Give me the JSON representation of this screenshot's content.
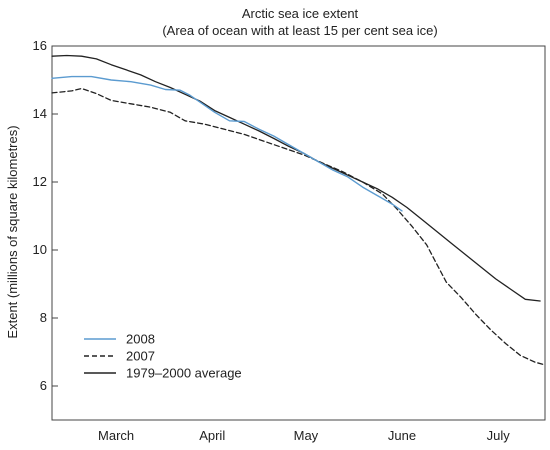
{
  "chart_data": {
    "type": "line",
    "title": "Arctic sea ice extent",
    "subtitle": "(Area of ocean with at least 15 per cent sea ice)",
    "ylabel": "Extent (millions of square kilometres)",
    "xlabel": "",
    "ylim": [
      5,
      16
    ],
    "xlim": [
      0,
      1
    ],
    "yticks": [
      6,
      8,
      10,
      12,
      14,
      16
    ],
    "month_labels": [
      {
        "label": "March",
        "x": 0.13
      },
      {
        "label": "April",
        "x": 0.325
      },
      {
        "label": "May",
        "x": 0.515
      },
      {
        "label": "June",
        "x": 0.71
      },
      {
        "label": "July",
        "x": 0.905
      }
    ],
    "legend_placement": "bottom-left",
    "grid": false,
    "series": [
      {
        "name": "2008",
        "color": "#5b9bd0",
        "dash": "solid",
        "points": [
          [
            0.0,
            15.05
          ],
          [
            0.04,
            15.1
          ],
          [
            0.08,
            15.1
          ],
          [
            0.12,
            15.0
          ],
          [
            0.16,
            14.95
          ],
          [
            0.2,
            14.85
          ],
          [
            0.23,
            14.72
          ],
          [
            0.26,
            14.7
          ],
          [
            0.28,
            14.55
          ],
          [
            0.3,
            14.35
          ],
          [
            0.33,
            14.05
          ],
          [
            0.36,
            13.8
          ],
          [
            0.39,
            13.78
          ],
          [
            0.42,
            13.55
          ],
          [
            0.45,
            13.35
          ],
          [
            0.48,
            13.1
          ],
          [
            0.51,
            12.85
          ],
          [
            0.54,
            12.6
          ],
          [
            0.57,
            12.35
          ],
          [
            0.6,
            12.15
          ],
          [
            0.63,
            11.85
          ],
          [
            0.66,
            11.6
          ],
          [
            0.69,
            11.35
          ],
          [
            0.71,
            11.15
          ]
        ]
      },
      {
        "name": "2007",
        "color": "#222222",
        "dash": "dashed",
        "points": [
          [
            0.0,
            14.62
          ],
          [
            0.04,
            14.68
          ],
          [
            0.06,
            14.75
          ],
          [
            0.09,
            14.6
          ],
          [
            0.12,
            14.4
          ],
          [
            0.16,
            14.3
          ],
          [
            0.2,
            14.2
          ],
          [
            0.24,
            14.05
          ],
          [
            0.27,
            13.8
          ],
          [
            0.31,
            13.7
          ],
          [
            0.35,
            13.55
          ],
          [
            0.39,
            13.4
          ],
          [
            0.43,
            13.2
          ],
          [
            0.47,
            13.0
          ],
          [
            0.51,
            12.8
          ],
          [
            0.55,
            12.55
          ],
          [
            0.59,
            12.3
          ],
          [
            0.63,
            12.0
          ],
          [
            0.67,
            11.65
          ],
          [
            0.7,
            11.2
          ],
          [
            0.73,
            10.7
          ],
          [
            0.76,
            10.15
          ],
          [
            0.78,
            9.6
          ],
          [
            0.8,
            9.05
          ],
          [
            0.83,
            8.6
          ],
          [
            0.86,
            8.1
          ],
          [
            0.89,
            7.65
          ],
          [
            0.92,
            7.25
          ],
          [
            0.95,
            6.9
          ],
          [
            0.98,
            6.7
          ],
          [
            1.0,
            6.62
          ]
        ]
      },
      {
        "name": "1979–2000 average",
        "color": "#222222",
        "dash": "solid",
        "points": [
          [
            0.0,
            15.7
          ],
          [
            0.03,
            15.72
          ],
          [
            0.06,
            15.7
          ],
          [
            0.09,
            15.62
          ],
          [
            0.12,
            15.45
          ],
          [
            0.15,
            15.3
          ],
          [
            0.18,
            15.15
          ],
          [
            0.21,
            14.95
          ],
          [
            0.24,
            14.78
          ],
          [
            0.27,
            14.58
          ],
          [
            0.3,
            14.38
          ],
          [
            0.33,
            14.1
          ],
          [
            0.36,
            13.9
          ],
          [
            0.39,
            13.7
          ],
          [
            0.42,
            13.5
          ],
          [
            0.45,
            13.28
          ],
          [
            0.48,
            13.05
          ],
          [
            0.51,
            12.85
          ],
          [
            0.54,
            12.6
          ],
          [
            0.57,
            12.4
          ],
          [
            0.6,
            12.2
          ],
          [
            0.63,
            12.0
          ],
          [
            0.66,
            11.8
          ],
          [
            0.69,
            11.55
          ],
          [
            0.72,
            11.25
          ],
          [
            0.75,
            10.9
          ],
          [
            0.78,
            10.55
          ],
          [
            0.81,
            10.2
          ],
          [
            0.84,
            9.85
          ],
          [
            0.87,
            9.5
          ],
          [
            0.9,
            9.15
          ],
          [
            0.93,
            8.85
          ],
          [
            0.96,
            8.55
          ],
          [
            0.99,
            8.5
          ]
        ]
      }
    ]
  }
}
